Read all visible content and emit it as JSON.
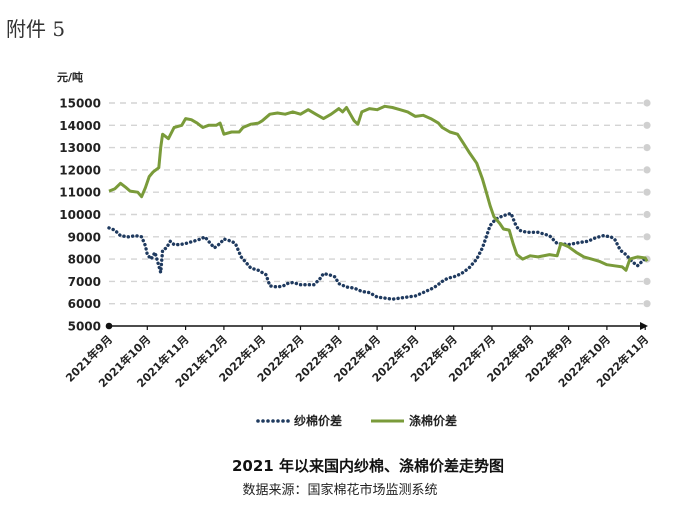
{
  "figure_label": "附件 5",
  "chart_data": {
    "type": "line",
    "title": "2021 年以来国内纱棉、涤棉价差走势图",
    "source": "数据来源：国家棉花市场监测系统",
    "ylabel": "元/吨",
    "xlabel": "",
    "ylim": [
      5000,
      15000
    ],
    "yticks": [
      5000,
      6000,
      7000,
      8000,
      9000,
      10000,
      11000,
      12000,
      13000,
      14000,
      15000
    ],
    "xticks": [
      "2021年9月",
      "2021年10月",
      "2021年11月",
      "2021年12月",
      "2022年1月",
      "2022年2月",
      "2022年3月",
      "2022年4月",
      "2022年5月",
      "2022年6月",
      "2022年7月",
      "2022年8月",
      "2022年9月",
      "2022年10月",
      "2022年11月"
    ],
    "grid": true,
    "legend_position": "bottom",
    "x_unit": "month index (0 = 2021年9月, 14 = 2022年11月)",
    "series": [
      {
        "name": "纱棉价差",
        "style": "dotted",
        "color": "#1f3a5f",
        "points": [
          [
            0,
            9400
          ],
          [
            0.15,
            9300
          ],
          [
            0.3,
            9050
          ],
          [
            0.5,
            9000
          ],
          [
            0.7,
            9050
          ],
          [
            0.85,
            9000
          ],
          [
            0.95,
            8600
          ],
          [
            1.0,
            8200
          ],
          [
            1.1,
            8000
          ],
          [
            1.2,
            8300
          ],
          [
            1.3,
            7700
          ],
          [
            1.35,
            7400
          ],
          [
            1.4,
            8400
          ],
          [
            1.5,
            8500
          ],
          [
            1.6,
            8800
          ],
          [
            1.7,
            8650
          ],
          [
            1.85,
            8650
          ],
          [
            2.0,
            8700
          ],
          [
            2.2,
            8800
          ],
          [
            2.4,
            8900
          ],
          [
            2.5,
            9000
          ],
          [
            2.6,
            8800
          ],
          [
            2.75,
            8500
          ],
          [
            2.9,
            8700
          ],
          [
            3.0,
            8900
          ],
          [
            3.2,
            8800
          ],
          [
            3.3,
            8700
          ],
          [
            3.45,
            8100
          ],
          [
            3.55,
            7900
          ],
          [
            3.7,
            7600
          ],
          [
            3.9,
            7500
          ],
          [
            4.1,
            7300
          ],
          [
            4.2,
            6800
          ],
          [
            4.4,
            6750
          ],
          [
            4.55,
            6800
          ],
          [
            4.65,
            6900
          ],
          [
            4.8,
            6950
          ],
          [
            5.0,
            6850
          ],
          [
            5.2,
            6850
          ],
          [
            5.35,
            6850
          ],
          [
            5.5,
            7100
          ],
          [
            5.6,
            7350
          ],
          [
            5.75,
            7300
          ],
          [
            5.9,
            7200
          ],
          [
            6.0,
            6900
          ],
          [
            6.2,
            6750
          ],
          [
            6.4,
            6700
          ],
          [
            6.6,
            6550
          ],
          [
            6.8,
            6500
          ],
          [
            7.0,
            6300
          ],
          [
            7.2,
            6250
          ],
          [
            7.4,
            6200
          ],
          [
            7.6,
            6250
          ],
          [
            7.8,
            6300
          ],
          [
            8.0,
            6350
          ],
          [
            8.2,
            6500
          ],
          [
            8.4,
            6650
          ],
          [
            8.55,
            6800
          ],
          [
            8.7,
            7000
          ],
          [
            8.85,
            7150
          ],
          [
            9.0,
            7200
          ],
          [
            9.2,
            7350
          ],
          [
            9.4,
            7600
          ],
          [
            9.6,
            8000
          ],
          [
            9.75,
            8500
          ],
          [
            9.85,
            9000
          ],
          [
            9.95,
            9500
          ],
          [
            10.1,
            9800
          ],
          [
            10.3,
            9950
          ],
          [
            10.5,
            10050
          ],
          [
            10.6,
            9600
          ],
          [
            10.7,
            9300
          ],
          [
            10.9,
            9200
          ],
          [
            11.2,
            9200
          ],
          [
            11.5,
            9050
          ],
          [
            11.7,
            8700
          ],
          [
            12.0,
            8650
          ],
          [
            12.3,
            8750
          ],
          [
            12.5,
            8800
          ],
          [
            12.7,
            8950
          ],
          [
            12.9,
            9050
          ],
          [
            13.1,
            9000
          ],
          [
            13.2,
            8900
          ],
          [
            13.35,
            8400
          ],
          [
            13.5,
            8200
          ],
          [
            13.65,
            7900
          ],
          [
            13.8,
            7700
          ],
          [
            13.95,
            7950
          ],
          [
            14.05,
            8100
          ]
        ]
      },
      {
        "name": "涤棉价差",
        "style": "solid",
        "color": "#7a9b3a",
        "points": [
          [
            0,
            11050
          ],
          [
            0.15,
            11150
          ],
          [
            0.3,
            11400
          ],
          [
            0.45,
            11200
          ],
          [
            0.55,
            11050
          ],
          [
            0.75,
            11000
          ],
          [
            0.85,
            10800
          ],
          [
            0.95,
            11200
          ],
          [
            1.05,
            11700
          ],
          [
            1.15,
            11900
          ],
          [
            1.3,
            12100
          ],
          [
            1.35,
            13000
          ],
          [
            1.4,
            13600
          ],
          [
            1.55,
            13400
          ],
          [
            1.7,
            13900
          ],
          [
            1.9,
            14000
          ],
          [
            2.0,
            14300
          ],
          [
            2.15,
            14250
          ],
          [
            2.3,
            14100
          ],
          [
            2.45,
            13900
          ],
          [
            2.6,
            14000
          ],
          [
            2.8,
            14000
          ],
          [
            2.9,
            14100
          ],
          [
            3.0,
            13600
          ],
          [
            3.2,
            13700
          ],
          [
            3.4,
            13700
          ],
          [
            3.5,
            13900
          ],
          [
            3.7,
            14050
          ],
          [
            3.9,
            14100
          ],
          [
            4.0,
            14200
          ],
          [
            4.2,
            14500
          ],
          [
            4.4,
            14550
          ],
          [
            4.6,
            14500
          ],
          [
            4.8,
            14600
          ],
          [
            5.0,
            14500
          ],
          [
            5.2,
            14700
          ],
          [
            5.4,
            14500
          ],
          [
            5.6,
            14300
          ],
          [
            5.8,
            14500
          ],
          [
            6.0,
            14750
          ],
          [
            6.1,
            14600
          ],
          [
            6.2,
            14800
          ],
          [
            6.4,
            14200
          ],
          [
            6.5,
            14050
          ],
          [
            6.6,
            14600
          ],
          [
            6.8,
            14750
          ],
          [
            7.0,
            14700
          ],
          [
            7.2,
            14850
          ],
          [
            7.4,
            14800
          ],
          [
            7.6,
            14700
          ],
          [
            7.8,
            14600
          ],
          [
            8.0,
            14400
          ],
          [
            8.2,
            14450
          ],
          [
            8.4,
            14300
          ],
          [
            8.6,
            14100
          ],
          [
            8.7,
            13900
          ],
          [
            8.9,
            13700
          ],
          [
            9.1,
            13600
          ],
          [
            9.25,
            13200
          ],
          [
            9.4,
            12800
          ],
          [
            9.6,
            12300
          ],
          [
            9.75,
            11600
          ],
          [
            9.85,
            11000
          ],
          [
            9.95,
            10400
          ],
          [
            10.05,
            9900
          ],
          [
            10.2,
            9600
          ],
          [
            10.3,
            9350
          ],
          [
            10.45,
            9300
          ],
          [
            10.55,
            8700
          ],
          [
            10.65,
            8200
          ],
          [
            10.8,
            8000
          ],
          [
            11.0,
            8150
          ],
          [
            11.2,
            8100
          ],
          [
            11.5,
            8200
          ],
          [
            11.7,
            8150
          ],
          [
            11.8,
            8700
          ],
          [
            12.0,
            8550
          ],
          [
            12.2,
            8300
          ],
          [
            12.4,
            8100
          ],
          [
            12.6,
            8000
          ],
          [
            12.8,
            7900
          ],
          [
            13.0,
            7750
          ],
          [
            13.2,
            7700
          ],
          [
            13.4,
            7650
          ],
          [
            13.5,
            7500
          ],
          [
            13.6,
            8000
          ],
          [
            13.8,
            8100
          ],
          [
            14.0,
            8050
          ],
          [
            14.05,
            7900
          ]
        ]
      }
    ]
  }
}
